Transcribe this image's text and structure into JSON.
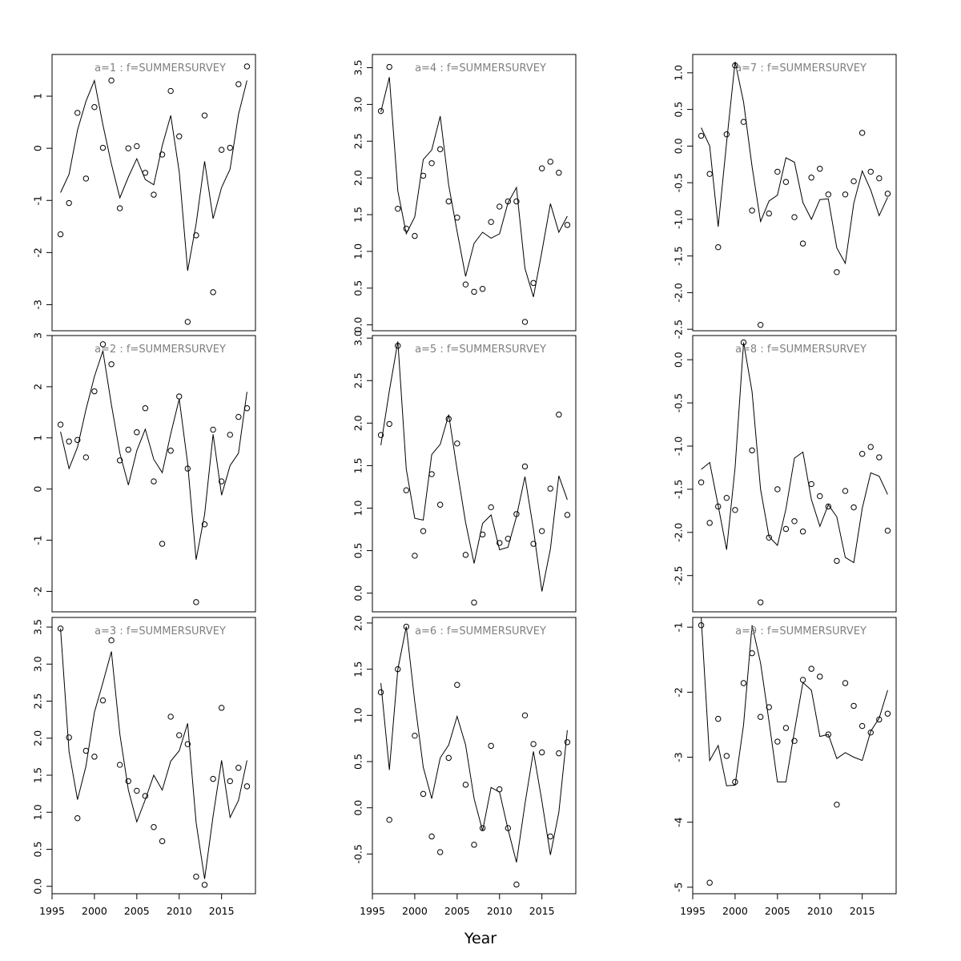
{
  "figure": {
    "xlabel": "Year"
  },
  "chart_data": [
    {
      "type": "line",
      "title": "a=1  :  f=SUMMERSURVEY",
      "xlim": [
        1995,
        2019
      ],
      "ylim": [
        -3.5,
        1.8
      ],
      "yticks": [
        -3,
        -2,
        -1,
        0,
        1
      ],
      "xticks": [],
      "x": [
        1996,
        1997,
        1998,
        1999,
        2000,
        2001,
        2002,
        2003,
        2004,
        2005,
        2006,
        2007,
        2008,
        2009,
        2010,
        2011,
        2012,
        2013,
        2014,
        2015,
        2016,
        2017,
        2018
      ],
      "series": [
        {
          "kind": "points",
          "values": [
            -1.65,
            -1.05,
            0.68,
            -0.58,
            0.79,
            0.01,
            1.3,
            -1.15,
            0.0,
            0.04,
            -0.47,
            -0.89,
            -0.12,
            1.1,
            0.23,
            -3.33,
            -1.67,
            0.63,
            -2.76,
            -0.03,
            0.01,
            1.23,
            1.57
          ]
        },
        {
          "kind": "line",
          "values": [
            -0.85,
            -0.5,
            0.35,
            0.9,
            1.3,
            0.45,
            -0.3,
            -0.95,
            -0.55,
            -0.2,
            -0.6,
            -0.7,
            0.05,
            0.63,
            -0.45,
            -2.35,
            -1.45,
            -0.25,
            -1.35,
            -0.75,
            -0.4,
            0.65,
            1.3
          ]
        }
      ]
    },
    {
      "type": "line",
      "title": "a=2  :  f=SUMMERSURVEY",
      "xlim": [
        1995,
        2019
      ],
      "ylim": [
        -2.4,
        3.0
      ],
      "yticks": [
        -2,
        -1,
        0,
        1,
        2,
        3
      ],
      "xticks": [],
      "x": [
        1996,
        1997,
        1998,
        1999,
        2000,
        2001,
        2002,
        2003,
        2004,
        2005,
        2006,
        2007,
        2008,
        2009,
        2010,
        2011,
        2012,
        2013,
        2014,
        2015,
        2016,
        2017,
        2018
      ],
      "series": [
        {
          "kind": "points",
          "values": [
            1.26,
            0.93,
            0.96,
            0.62,
            1.91,
            2.83,
            2.44,
            0.56,
            0.77,
            1.11,
            1.58,
            0.15,
            -1.07,
            0.75,
            1.81,
            0.4,
            -2.21,
            -0.69,
            1.16,
            0.15,
            1.06,
            1.41,
            1.58
          ]
        },
        {
          "kind": "line",
          "values": [
            1.12,
            0.4,
            0.82,
            1.55,
            2.2,
            2.7,
            1.65,
            0.7,
            0.08,
            0.75,
            1.17,
            0.58,
            0.32,
            1.08,
            1.76,
            0.5,
            -1.38,
            -0.5,
            1.07,
            -0.12,
            0.46,
            0.7,
            1.9
          ]
        }
      ]
    },
    {
      "type": "line",
      "title": "a=3  :  f=SUMMERSURVEY",
      "xlim": [
        1995,
        2019
      ],
      "ylim": [
        -0.1,
        3.63
      ],
      "yticks": [
        0.0,
        0.5,
        1.0,
        1.5,
        2.0,
        2.5,
        3.0,
        3.5
      ],
      "xticks": [
        1995,
        2000,
        2005,
        2010,
        2015
      ],
      "x": [
        1996,
        1997,
        1998,
        1999,
        2000,
        2001,
        2002,
        2003,
        2004,
        2005,
        2006,
        2007,
        2008,
        2009,
        2010,
        2011,
        2012,
        2013,
        2014,
        2015,
        2016,
        2017,
        2018
      ],
      "series": [
        {
          "kind": "points",
          "values": [
            3.48,
            2.01,
            0.92,
            1.83,
            1.75,
            2.51,
            3.32,
            1.64,
            1.42,
            1.29,
            1.22,
            0.8,
            0.61,
            2.29,
            2.04,
            1.92,
            0.13,
            0.02,
            1.45,
            2.41,
            1.42,
            1.6,
            1.35
          ]
        },
        {
          "kind": "line",
          "values": [
            3.48,
            1.82,
            1.17,
            1.62,
            2.35,
            2.75,
            3.17,
            2.05,
            1.3,
            0.87,
            1.17,
            1.5,
            1.3,
            1.69,
            1.83,
            2.2,
            0.86,
            0.1,
            0.95,
            1.7,
            0.93,
            1.16,
            1.7
          ]
        }
      ]
    },
    {
      "type": "line",
      "title": "a=4  :  f=SUMMERSURVEY",
      "xlim": [
        1995,
        2019
      ],
      "ylim": [
        -0.08,
        3.68
      ],
      "yticks": [
        0.0,
        0.5,
        1.0,
        1.5,
        2.0,
        2.5,
        3.0,
        3.5
      ],
      "xticks": [],
      "x": [
        1996,
        1997,
        1998,
        1999,
        2000,
        2001,
        2002,
        2003,
        2004,
        2005,
        2006,
        2007,
        2008,
        2009,
        2010,
        2011,
        2012,
        2013,
        2014,
        2015,
        2016,
        2017,
        2018
      ],
      "series": [
        {
          "kind": "points",
          "values": [
            2.91,
            3.51,
            1.58,
            1.31,
            1.21,
            2.03,
            2.2,
            2.39,
            1.68,
            1.46,
            0.55,
            0.45,
            0.49,
            1.4,
            1.61,
            1.68,
            1.68,
            0.04,
            0.57,
            2.13,
            2.22,
            2.07,
            1.36
          ]
        },
        {
          "kind": "line",
          "values": [
            2.9,
            3.37,
            1.82,
            1.24,
            1.47,
            2.25,
            2.38,
            2.84,
            1.9,
            1.27,
            0.66,
            1.11,
            1.26,
            1.18,
            1.24,
            1.66,
            1.87,
            0.77,
            0.38,
            1.0,
            1.65,
            1.26,
            1.48
          ]
        }
      ]
    },
    {
      "type": "line",
      "title": "a=5  :  f=SUMMERSURVEY",
      "xlim": [
        1995,
        2019
      ],
      "ylim": [
        -0.22,
        3.03
      ],
      "yticks": [
        0.0,
        0.5,
        1.0,
        1.5,
        2.0,
        2.5,
        3.0
      ],
      "xticks": [],
      "x": [
        1996,
        1997,
        1998,
        1999,
        2000,
        2001,
        2002,
        2003,
        2004,
        2005,
        2006,
        2007,
        2008,
        2009,
        2010,
        2011,
        2012,
        2013,
        2014,
        2015,
        2016,
        2017,
        2018
      ],
      "series": [
        {
          "kind": "points",
          "values": [
            1.86,
            1.99,
            2.91,
            1.21,
            0.44,
            0.73,
            1.4,
            1.04,
            2.05,
            1.76,
            0.45,
            -0.11,
            0.69,
            1.01,
            0.59,
            0.64,
            0.93,
            1.49,
            0.58,
            0.73,
            1.23,
            2.1,
            0.92
          ]
        },
        {
          "kind": "line",
          "values": [
            1.74,
            2.38,
            2.96,
            1.46,
            0.88,
            0.86,
            1.63,
            1.75,
            2.1,
            1.45,
            0.83,
            0.35,
            0.82,
            0.92,
            0.51,
            0.54,
            0.9,
            1.37,
            0.75,
            0.02,
            0.52,
            1.38,
            1.1
          ]
        }
      ]
    },
    {
      "type": "line",
      "title": "a=6  :  f=SUMMERSURVEY",
      "xlim": [
        1995,
        2019
      ],
      "ylim": [
        -0.93,
        2.06
      ],
      "yticks": [
        -0.5,
        0.0,
        0.5,
        1.0,
        1.5,
        2.0
      ],
      "xticks": [
        1995,
        2000,
        2005,
        2010,
        2015
      ],
      "x": [
        1996,
        1997,
        1998,
        1999,
        2000,
        2001,
        2002,
        2003,
        2004,
        2005,
        2006,
        2007,
        2008,
        2009,
        2010,
        2011,
        2012,
        2013,
        2014,
        2015,
        2016,
        2017,
        2018
      ],
      "series": [
        {
          "kind": "points",
          "values": [
            1.25,
            -0.13,
            1.5,
            1.96,
            0.78,
            0.15,
            -0.31,
            -0.48,
            0.54,
            1.33,
            0.25,
            -0.4,
            -0.22,
            0.67,
            0.2,
            -0.22,
            -0.83,
            1.0,
            0.69,
            0.6,
            -0.31,
            0.59,
            0.71
          ]
        },
        {
          "kind": "line",
          "values": [
            1.35,
            0.41,
            1.5,
            1.96,
            1.15,
            0.44,
            0.1,
            0.54,
            0.68,
            0.99,
            0.68,
            0.1,
            -0.25,
            0.22,
            0.17,
            -0.23,
            -0.59,
            0.04,
            0.61,
            0.07,
            -0.51,
            -0.05,
            0.84
          ]
        }
      ]
    },
    {
      "type": "line",
      "title": "a=7  :  f=SUMMERSURVEY",
      "xlim": [
        1995,
        2019
      ],
      "ylim": [
        -2.52,
        1.25
      ],
      "yticks": [
        -2.5,
        -2.0,
        -1.5,
        -1.0,
        -0.5,
        0.0,
        0.5,
        1.0
      ],
      "xticks": [],
      "x": [
        1996,
        1997,
        1998,
        1999,
        2000,
        2001,
        2002,
        2003,
        2004,
        2005,
        2006,
        2007,
        2008,
        2009,
        2010,
        2011,
        2012,
        2013,
        2014,
        2015,
        2016,
        2017,
        2018
      ],
      "series": [
        {
          "kind": "points",
          "values": [
            0.14,
            -0.38,
            -1.38,
            0.16,
            1.1,
            0.33,
            -0.88,
            -2.44,
            -0.92,
            -0.35,
            -0.49,
            -0.97,
            -1.33,
            -0.43,
            -0.31,
            -0.66,
            -1.72,
            -0.66,
            -0.48,
            0.18,
            -0.35,
            -0.44,
            -0.65
          ]
        },
        {
          "kind": "line",
          "values": [
            0.25,
            0.0,
            -1.1,
            0.05,
            1.15,
            0.6,
            -0.28,
            -1.03,
            -0.75,
            -0.67,
            -0.16,
            -0.22,
            -0.77,
            -1.0,
            -0.73,
            -0.72,
            -1.39,
            -1.6,
            -0.78,
            -0.34,
            -0.6,
            -0.95,
            -0.7
          ]
        }
      ]
    },
    {
      "type": "line",
      "title": "a=8  :  f=SUMMERSURVEY",
      "xlim": [
        1995,
        2019
      ],
      "ylim": [
        -2.92,
        0.28
      ],
      "yticks": [
        -2.5,
        -2.0,
        -1.5,
        -1.0,
        -0.5,
        0.0
      ],
      "xticks": [],
      "x": [
        1996,
        1997,
        1998,
        1999,
        2000,
        2001,
        2002,
        2003,
        2004,
        2005,
        2006,
        2007,
        2008,
        2009,
        2010,
        2011,
        2012,
        2013,
        2014,
        2015,
        2016,
        2017,
        2018
      ],
      "series": [
        {
          "kind": "points",
          "values": [
            -1.42,
            -1.89,
            -1.7,
            -1.6,
            -1.74,
            0.2,
            -1.05,
            -2.81,
            -2.06,
            -1.5,
            -1.96,
            -1.87,
            -1.99,
            -1.44,
            -1.58,
            -1.7,
            -2.33,
            -1.52,
            -1.71,
            -1.09,
            -1.01,
            -1.13,
            -1.98
          ]
        },
        {
          "kind": "line",
          "values": [
            -1.27,
            -1.19,
            -1.69,
            -2.2,
            -1.25,
            0.2,
            -0.37,
            -1.5,
            -2.05,
            -2.15,
            -1.73,
            -1.14,
            -1.07,
            -1.62,
            -1.93,
            -1.68,
            -1.82,
            -2.29,
            -2.35,
            -1.72,
            -1.31,
            -1.35,
            -1.56
          ]
        }
      ]
    },
    {
      "type": "line",
      "title": "a=9  :  f=SUMMERSURVEY",
      "xlim": [
        1995,
        2019
      ],
      "ylim": [
        -5.1,
        -0.85
      ],
      "yticks": [
        -5,
        -4,
        -3,
        -2,
        -1
      ],
      "xticks": [
        1995,
        2000,
        2005,
        2010,
        2015
      ],
      "x": [
        1996,
        1997,
        1998,
        1999,
        2000,
        2001,
        2002,
        2003,
        2004,
        2005,
        2006,
        2007,
        2008,
        2009,
        2010,
        2011,
        2012,
        2013,
        2014,
        2015,
        2016,
        2017,
        2018
      ],
      "series": [
        {
          "kind": "points",
          "values": [
            -0.97,
            -4.93,
            -2.41,
            -2.98,
            -3.38,
            -1.86,
            -1.4,
            -2.38,
            -2.23,
            -2.76,
            -2.55,
            -2.75,
            -1.81,
            -1.64,
            -1.76,
            -2.65,
            -3.73,
            -1.86,
            -2.21,
            -2.52,
            -2.62,
            -2.42,
            -2.33
          ]
        },
        {
          "kind": "line",
          "values": [
            -0.85,
            -3.05,
            -2.82,
            -3.44,
            -3.43,
            -2.5,
            -0.97,
            -1.55,
            -2.45,
            -3.38,
            -3.38,
            -2.6,
            -1.85,
            -1.97,
            -2.68,
            -2.65,
            -3.02,
            -2.93,
            -3.0,
            -3.05,
            -2.6,
            -2.4,
            -1.97
          ]
        }
      ]
    }
  ]
}
